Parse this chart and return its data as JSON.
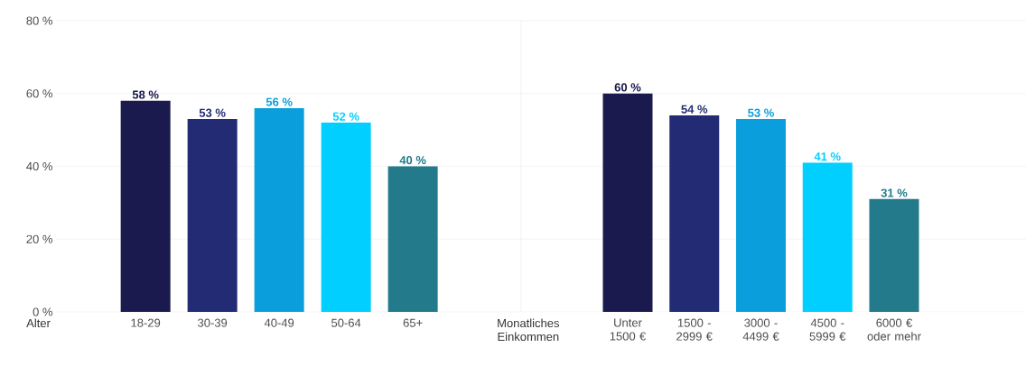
{
  "chart_data": [
    {
      "type": "bar",
      "xlabel": "Alter",
      "categories": [
        "18-29",
        "30-39",
        "40-49",
        "50-64",
        "65+"
      ],
      "values": [
        58,
        53,
        56,
        52,
        40
      ],
      "colors": [
        "#1a1a4e",
        "#222b73",
        "#0a9fdc",
        "#00cfff",
        "#237a8a"
      ],
      "value_labels": [
        "58 %",
        "53 %",
        "56 %",
        "52 %",
        "40 %"
      ],
      "ylim": [
        0,
        80
      ],
      "yticks": [
        {
          "value": 0,
          "label": "0 %"
        },
        {
          "value": 20,
          "label": "20 %"
        },
        {
          "value": 40,
          "label": "40 %"
        },
        {
          "value": 60,
          "label": "60 %"
        },
        {
          "value": 80,
          "label": "80 %"
        }
      ],
      "grid": "y"
    },
    {
      "type": "bar",
      "xlabel": "Monatliches Einkommen",
      "categories": [
        "Unter 1500 €",
        "1500 - 2999 €",
        "3000 - 4499 €",
        "4500 - 5999 €",
        "6000 € oder mehr"
      ],
      "values": [
        60,
        54,
        53,
        41,
        31
      ],
      "colors": [
        "#1a1a4e",
        "#222b73",
        "#0a9fdc",
        "#00cfff",
        "#237a8a"
      ],
      "value_labels": [
        "60 %",
        "54 %",
        "53 %",
        "41 %",
        "31 %"
      ],
      "ylim": [
        0,
        80
      ],
      "yticks": [
        0,
        20,
        40,
        60,
        80
      ],
      "tick_labels": "x",
      "grid": "y"
    }
  ]
}
